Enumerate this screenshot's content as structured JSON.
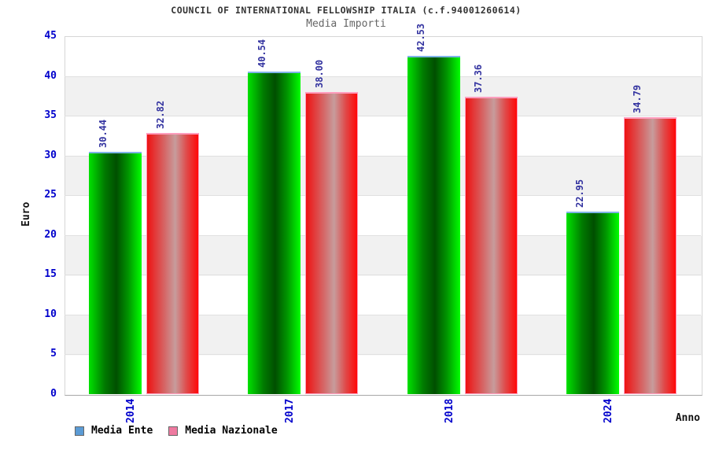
{
  "chart_data": {
    "type": "bar",
    "title": "COUNCIL OF INTERNATIONAL FELLOWSHIP ITALIA (c.f.94001260614)",
    "subtitle": "Media Importi",
    "categories": [
      "2014",
      "2017",
      "2018",
      "2024"
    ],
    "series": [
      {
        "name": "Media Ente",
        "bar_color": "#00dd00",
        "bar_outline_color": "#7fb3e8",
        "legend_color": "#5b9bd5",
        "values": [
          30.44,
          40.54,
          42.53,
          22.95
        ]
      },
      {
        "name": "Media Nazionale",
        "bar_color": "#ee2222",
        "bar_outline_color": "#ff9dbd",
        "legend_color": "#ee7aa0",
        "values": [
          32.82,
          38.0,
          37.36,
          34.79
        ]
      }
    ],
    "xlabel": "Anno",
    "ylabel": "Euro",
    "ylim": [
      0,
      45
    ],
    "y_ticks": [
      0,
      5,
      10,
      15,
      20,
      25,
      30,
      35,
      40,
      45
    ],
    "grid": "horizontal-bands",
    "legend_position": "bottom-left",
    "value_labels": [
      "30.44",
      "32.82",
      "40.54",
      "38.00",
      "42.53",
      "37.36",
      "22.95",
      "34.79"
    ],
    "tick_label_color": "#0000cc",
    "value_label_color": "#3333a0"
  }
}
